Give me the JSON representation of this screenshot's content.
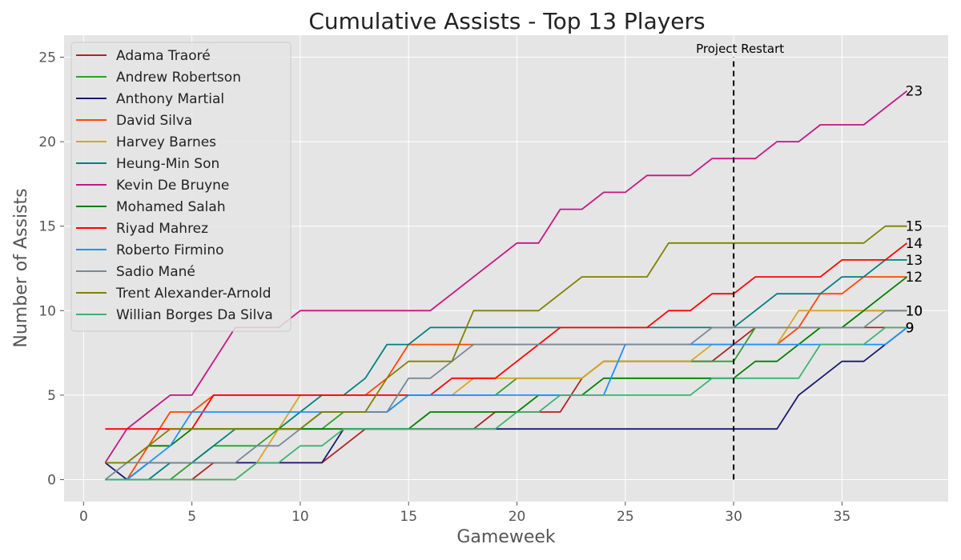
{
  "chart_data": {
    "type": "line",
    "title": "Cumulative Assists - Top 13 Players",
    "xlabel": "Gameweek",
    "ylabel": "Number of Assists",
    "xlim": [
      -0.9,
      39.9
    ],
    "ylim": [
      -1.3,
      26.3
    ],
    "xticks": [
      0,
      5,
      10,
      15,
      20,
      25,
      30,
      35
    ],
    "yticks": [
      0,
      5,
      10,
      15,
      20,
      25
    ],
    "grid": true,
    "legend_position": "top-left",
    "x": [
      1,
      2,
      3,
      4,
      5,
      6,
      7,
      8,
      9,
      10,
      11,
      12,
      13,
      14,
      15,
      16,
      17,
      18,
      19,
      20,
      21,
      22,
      23,
      24,
      25,
      26,
      27,
      28,
      29,
      30,
      31,
      32,
      33,
      34,
      35,
      36,
      37,
      38
    ],
    "series": [
      {
        "name": "Adama Traoré",
        "color": "#b22222",
        "values": [
          0,
          0,
          0,
          0,
          0,
          1,
          1,
          1,
          1,
          1,
          1,
          2,
          3,
          3,
          3,
          3,
          3,
          3,
          4,
          4,
          4,
          4,
          6,
          7,
          7,
          7,
          7,
          7,
          7,
          8,
          9,
          9,
          9,
          9,
          9,
          9,
          9,
          9
        ]
      },
      {
        "name": "Andrew Robertson",
        "color": "#2ca02c",
        "values": [
          0,
          0,
          0,
          0,
          1,
          2,
          2,
          2,
          3,
          3,
          3,
          4,
          4,
          4,
          5,
          5,
          5,
          5,
          5,
          6,
          6,
          6,
          6,
          7,
          7,
          7,
          7,
          7,
          7,
          7,
          9,
          9,
          9,
          9,
          9,
          10,
          10,
          10
        ]
      },
      {
        "name": "Anthony Martial",
        "color": "#191970",
        "values": [
          1,
          0,
          1,
          1,
          1,
          1,
          1,
          1,
          1,
          1,
          1,
          3,
          3,
          3,
          3,
          3,
          3,
          3,
          3,
          3,
          3,
          3,
          3,
          3,
          3,
          3,
          3,
          3,
          3,
          3,
          3,
          3,
          5,
          6,
          7,
          7,
          8,
          9
        ]
      },
      {
        "name": "David Silva",
        "color": "#ff4500",
        "values": [
          0,
          0,
          2,
          4,
          4,
          5,
          5,
          5,
          5,
          5,
          5,
          5,
          5,
          6,
          8,
          8,
          8,
          8,
          8,
          8,
          8,
          8,
          8,
          8,
          8,
          8,
          8,
          8,
          8,
          8,
          8,
          8,
          9,
          11,
          11,
          12,
          12,
          12
        ]
      },
      {
        "name": "Harvey Barnes",
        "color": "#daa520",
        "values": [
          0,
          0,
          0,
          0,
          0,
          0,
          0,
          1,
          3,
          5,
          5,
          5,
          5,
          5,
          5,
          5,
          5,
          6,
          6,
          6,
          6,
          6,
          6,
          7,
          7,
          7,
          7,
          7,
          8,
          8,
          8,
          8,
          10,
          10,
          10,
          10,
          10,
          10
        ]
      },
      {
        "name": "Heung-Min Son",
        "color": "#008080",
        "values": [
          0,
          0,
          0,
          1,
          1,
          2,
          3,
          3,
          3,
          4,
          5,
          5,
          6,
          8,
          8,
          9,
          9,
          9,
          9,
          9,
          9,
          9,
          9,
          9,
          9,
          9,
          9,
          9,
          9,
          9,
          10,
          11,
          11,
          11,
          12,
          12,
          13,
          13
        ]
      },
      {
        "name": "Kevin De Bruyne",
        "color": "#c71585",
        "values": [
          1,
          3,
          4,
          5,
          5,
          7,
          9,
          9,
          9,
          10,
          10,
          10,
          10,
          10,
          10,
          10,
          11,
          12,
          13,
          14,
          14,
          16,
          16,
          17,
          17,
          18,
          18,
          18,
          19,
          19,
          19,
          20,
          20,
          21,
          21,
          21,
          22,
          23
        ]
      },
      {
        "name": "Mohamed Salah",
        "color": "#008000",
        "values": [
          1,
          1,
          2,
          2,
          3,
          3,
          3,
          3,
          3,
          3,
          3,
          3,
          3,
          3,
          3,
          4,
          4,
          4,
          4,
          4,
          5,
          5,
          5,
          6,
          6,
          6,
          6,
          6,
          6,
          6,
          7,
          7,
          8,
          9,
          9,
          10,
          11,
          12
        ]
      },
      {
        "name": "Riyad Mahrez",
        "color": "#ff0000",
        "values": [
          3,
          3,
          3,
          3,
          3,
          5,
          5,
          5,
          5,
          5,
          5,
          5,
          5,
          5,
          5,
          5,
          6,
          6,
          6,
          7,
          8,
          9,
          9,
          9,
          9,
          9,
          10,
          10,
          11,
          11,
          12,
          12,
          12,
          12,
          13,
          13,
          13,
          14
        ]
      },
      {
        "name": "Roberto Firmino",
        "color": "#1e90ff",
        "values": [
          0,
          0,
          1,
          2,
          4,
          4,
          4,
          4,
          4,
          4,
          4,
          4,
          4,
          4,
          5,
          5,
          5,
          5,
          5,
          5,
          5,
          5,
          5,
          5,
          8,
          8,
          8,
          8,
          8,
          8,
          8,
          8,
          8,
          8,
          8,
          8,
          8,
          9
        ]
      },
      {
        "name": "Sadio Mané",
        "color": "#778899",
        "values": [
          0,
          1,
          1,
          1,
          1,
          1,
          1,
          2,
          2,
          3,
          4,
          4,
          4,
          4,
          6,
          6,
          7,
          8,
          8,
          8,
          8,
          8,
          8,
          8,
          8,
          8,
          8,
          8,
          9,
          9,
          9,
          9,
          9,
          9,
          9,
          9,
          10,
          10
        ]
      },
      {
        "name": "Trent Alexander-Arnold",
        "color": "#808000",
        "values": [
          1,
          1,
          2,
          3,
          3,
          3,
          3,
          3,
          3,
          3,
          4,
          4,
          4,
          6,
          7,
          7,
          7,
          10,
          10,
          10,
          10,
          11,
          12,
          12,
          12,
          12,
          14,
          14,
          14,
          14,
          14,
          14,
          14,
          14,
          14,
          14,
          15,
          15
        ]
      },
      {
        "name": "Willian Borges Da Silva",
        "color": "#3cb371",
        "values": [
          0,
          0,
          0,
          0,
          0,
          0,
          0,
          1,
          1,
          2,
          2,
          3,
          3,
          3,
          3,
          3,
          3,
          3,
          3,
          4,
          4,
          5,
          5,
          5,
          5,
          5,
          5,
          5,
          6,
          6,
          6,
          6,
          6,
          8,
          8,
          8,
          9,
          9
        ]
      }
    ],
    "end_labels": [
      "23",
      "15",
      "14",
      "13",
      "12",
      "10",
      "10",
      "9",
      "9"
    ],
    "annotation": {
      "text": "Project Restart",
      "x": 30
    }
  }
}
